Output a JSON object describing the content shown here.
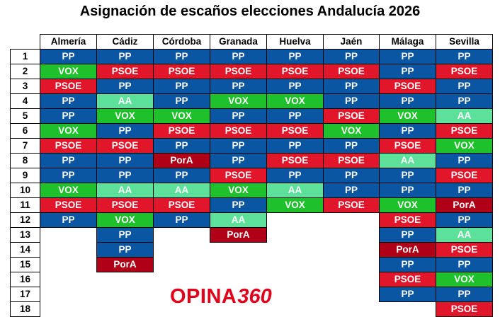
{
  "title": "Asignación de escaños elecciones Andalucía 2026",
  "logo_text": {
    "word": "OPINA",
    "number": "360"
  },
  "colors": {
    "PP": "#0b56a2",
    "PSOE": "#e1162b",
    "VOX": "#1ec02b",
    "AA": "#5ce09a",
    "PorA": "#b00017",
    "brand": "#e3001b"
  },
  "chart_data": {
    "type": "table",
    "title": "Asignación de escaños elecciones Andalucía 2026",
    "columns": [
      "Almería",
      "Cádiz",
      "Córdoba",
      "Granada",
      "Huelva",
      "Jaén",
      "Málaga",
      "Sevilla"
    ],
    "row_labels": [
      "1",
      "2",
      "3",
      "4",
      "5",
      "6",
      "7",
      "8",
      "9",
      "10",
      "11",
      "12",
      "13",
      "14",
      "15",
      "16",
      "17",
      "18"
    ],
    "seats": {
      "Almería": [
        "PP",
        "VOX",
        "PSOE",
        "PP",
        "PP",
        "VOX",
        "PSOE",
        "PP",
        "PP",
        "VOX",
        "PSOE",
        "PP"
      ],
      "Cádiz": [
        "PP",
        "PSOE",
        "PP",
        "AA",
        "VOX",
        "PP",
        "PSOE",
        "PP",
        "PP",
        "AA",
        "PSOE",
        "VOX",
        "PP",
        "PP",
        "PorA"
      ],
      "Córdoba": [
        "PP",
        "PSOE",
        "PP",
        "PP",
        "VOX",
        "PSOE",
        "PP",
        "PorA",
        "PP",
        "AA",
        "PSOE",
        "PP"
      ],
      "Granada": [
        "PP",
        "PSOE",
        "PP",
        "VOX",
        "PP",
        "PSOE",
        "PP",
        "PP",
        "PSOE",
        "VOX",
        "PP",
        "AA",
        "PorA"
      ],
      "Huelva": [
        "PP",
        "PSOE",
        "PP",
        "VOX",
        "PP",
        "PSOE",
        "PP",
        "PSOE",
        "PP",
        "AA",
        "VOX"
      ],
      "Jaén": [
        "PP",
        "PSOE",
        "PP",
        "PP",
        "PSOE",
        "VOX",
        "PP",
        "PSOE",
        "PP",
        "PP",
        "PSOE"
      ],
      "Málaga": [
        "PP",
        "PP",
        "PSOE",
        "PP",
        "VOX",
        "PP",
        "PSOE",
        "AA",
        "PP",
        "PP",
        "VOX",
        "PSOE",
        "PP",
        "PorA",
        "PP",
        "PSOE",
        "PP"
      ],
      "Sevilla": [
        "PP",
        "PSOE",
        "PP",
        "PP",
        "AA",
        "PSOE",
        "VOX",
        "PP",
        "PSOE",
        "PP",
        "PorA",
        "PP",
        "AA",
        "PSOE",
        "PP",
        "VOX",
        "PP",
        "PSOE"
      ]
    }
  }
}
